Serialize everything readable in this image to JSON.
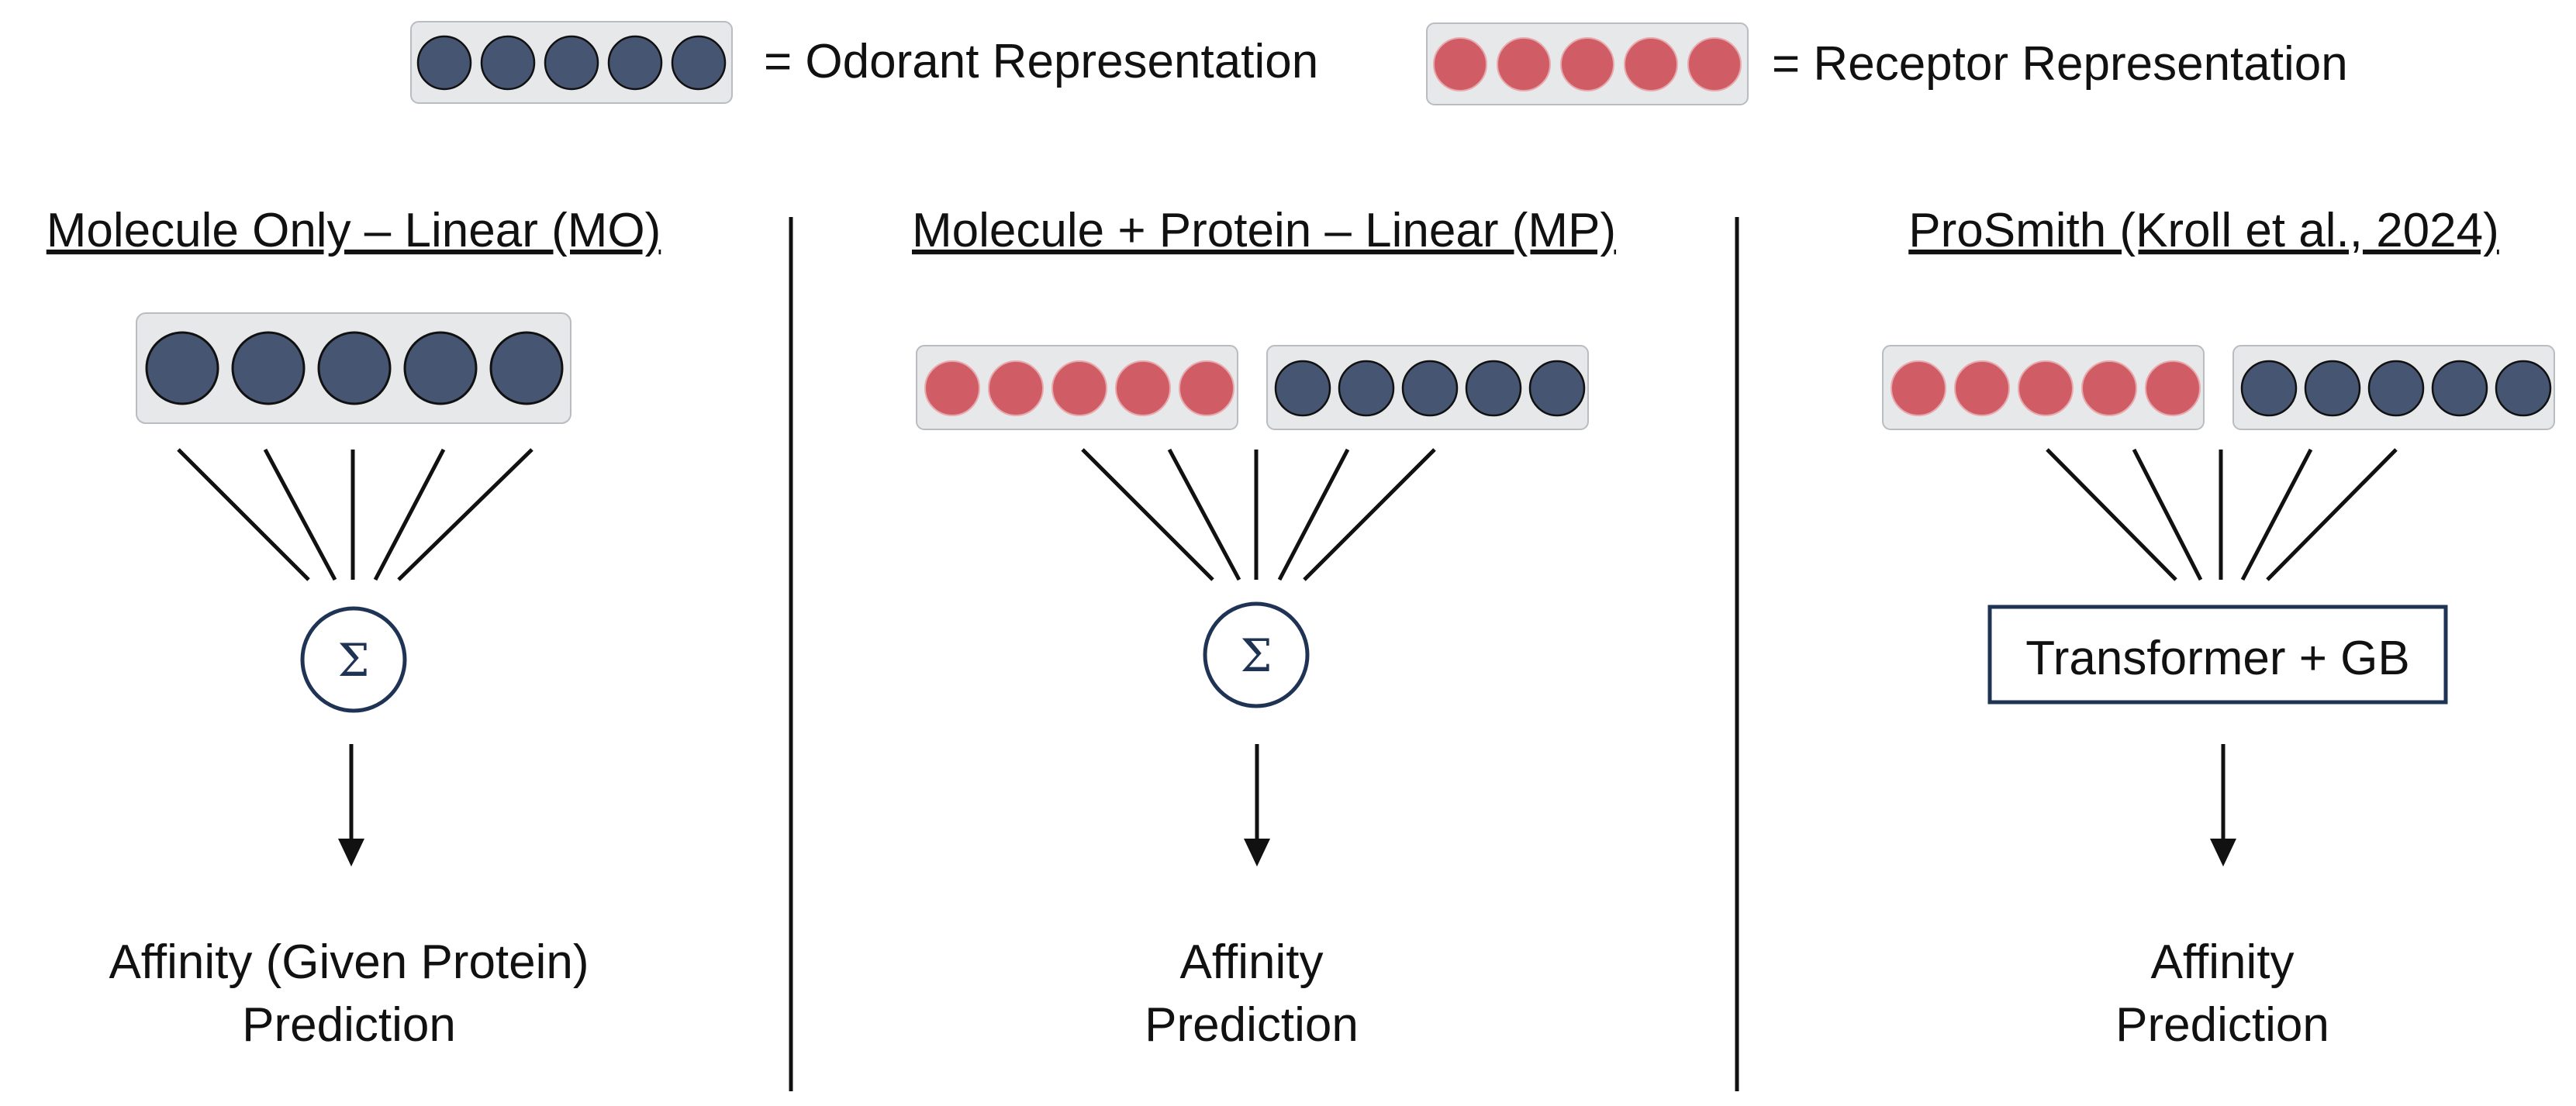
{
  "colors": {
    "odorant": "#465672",
    "receptor": "#d05d65",
    "box_fill": "#e7e8ea",
    "box_stroke": "#b9bcc1",
    "navy": "#1f3355",
    "line": "#111111"
  },
  "legend": {
    "odorant_label": "= Odorant Representation",
    "receptor_label": "= Receptor Representation"
  },
  "panels": [
    {
      "title": "Molecule Only – Linear (MO)",
      "inputs": [
        "odorant"
      ],
      "aggregator": {
        "type": "sum",
        "symbol": "Σ"
      },
      "output": [
        "Affinity (Given Protein)",
        "Prediction"
      ]
    },
    {
      "title": "Molecule + Protein – Linear (MP)",
      "inputs": [
        "receptor",
        "odorant"
      ],
      "aggregator": {
        "type": "sum",
        "symbol": "Σ"
      },
      "output": [
        "Affinity",
        "Prediction"
      ]
    },
    {
      "title": "ProSmith (Kroll et al., 2024)",
      "inputs": [
        "receptor",
        "odorant"
      ],
      "aggregator": {
        "type": "box",
        "label": "Transformer + GB"
      },
      "output": [
        "Affinity",
        "Prediction"
      ]
    }
  ]
}
